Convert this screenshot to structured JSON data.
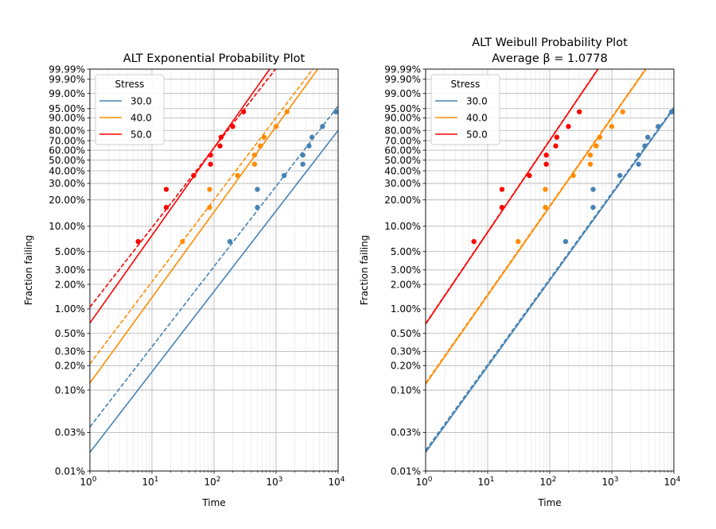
{
  "chart_data": [
    {
      "type": "scatter",
      "title": "ALT Exponential Probability Plot",
      "subtitle": "",
      "xlabel": "Time",
      "ylabel": "Fraction failing",
      "xscale": "log",
      "yscale": "weibull",
      "xlim": [
        1,
        10000
      ],
      "ylim": [
        0.0001,
        0.9999
      ],
      "xticks": [
        {
          "v": 1,
          "base": "10",
          "exp": "0"
        },
        {
          "v": 10,
          "base": "10",
          "exp": "1"
        },
        {
          "v": 100,
          "base": "10",
          "exp": "2"
        },
        {
          "v": 1000,
          "base": "10",
          "exp": "3"
        },
        {
          "v": 10000,
          "base": "10",
          "exp": "4"
        }
      ],
      "yticks": [
        {
          "v": 0.0001,
          "label": "0.01%"
        },
        {
          "v": 0.0003,
          "label": "0.03%"
        },
        {
          "v": 0.001,
          "label": "0.10%"
        },
        {
          "v": 0.002,
          "label": "0.20%"
        },
        {
          "v": 0.003,
          "label": "0.30%"
        },
        {
          "v": 0.005,
          "label": "0.50%"
        },
        {
          "v": 0.01,
          "label": "1.00%"
        },
        {
          "v": 0.02,
          "label": "2.00%"
        },
        {
          "v": 0.03,
          "label": "3.00%"
        },
        {
          "v": 0.05,
          "label": "5.00%"
        },
        {
          "v": 0.1,
          "label": "10.00%"
        },
        {
          "v": 0.2,
          "label": "20.00%"
        },
        {
          "v": 0.3,
          "label": "30.00%"
        },
        {
          "v": 0.4,
          "label": "40.00%"
        },
        {
          "v": 0.5,
          "label": "50.00%"
        },
        {
          "v": 0.6,
          "label": "60.00%"
        },
        {
          "v": 0.7,
          "label": "70.00%"
        },
        {
          "v": 0.8,
          "label": "80.00%"
        },
        {
          "v": 0.9,
          "label": "90.00%"
        },
        {
          "v": 0.95,
          "label": "95.00%"
        },
        {
          "v": 0.99,
          "label": "99.00%"
        },
        {
          "v": 0.999,
          "label": "99.90%"
        },
        {
          "v": 0.9999,
          "label": "99.99%"
        }
      ],
      "grid": true,
      "legend": {
        "title": "Stress",
        "position": "top-left",
        "entries": [
          "30.0",
          "40.0",
          "50.0"
        ]
      },
      "series": [
        {
          "name": "30.0",
          "color": "#4682b4",
          "points": [
            [
              180,
              0.066
            ],
            [
              500,
              0.165
            ],
            [
              500,
              0.26
            ],
            [
              1350,
              0.36
            ],
            [
              2700,
              0.46
            ],
            [
              2700,
              0.55
            ],
            [
              3400,
              0.645
            ],
            [
              3800,
              0.735
            ],
            [
              5600,
              0.835
            ],
            [
              9200,
              0.935
            ]
          ],
          "fit": {
            "from": [
              1,
              0.00017
            ],
            "to": [
              10000,
              0.8
            ]
          },
          "fit_dashed": {
            "from": [
              1,
              0.00035
            ],
            "to": [
              10000,
              0.96
            ]
          }
        },
        {
          "name": "40.0",
          "color": "#ff8c00",
          "points": [
            [
              31,
              0.066
            ],
            [
              85,
              0.165
            ],
            [
              85,
              0.26
            ],
            [
              240,
              0.36
            ],
            [
              450,
              0.46
            ],
            [
              450,
              0.55
            ],
            [
              560,
              0.645
            ],
            [
              640,
              0.735
            ],
            [
              1000,
              0.835
            ],
            [
              1500,
              0.935
            ]
          ],
          "fit": {
            "from": [
              1,
              0.00122
            ],
            "to": [
              4700,
              0.9999
            ]
          },
          "fit_dashed": {
            "from": [
              1,
              0.0021
            ],
            "to": [
              3900,
              0.9999
            ]
          }
        },
        {
          "name": "50.0",
          "color": "#ff0000",
          "points": [
            [
              6,
              0.066
            ],
            [
              17,
              0.165
            ],
            [
              17,
              0.26
            ],
            [
              47,
              0.36
            ],
            [
              88,
              0.46
            ],
            [
              88,
              0.55
            ],
            [
              125,
              0.645
            ],
            [
              130,
              0.735
            ],
            [
              200,
              0.835
            ],
            [
              300,
              0.935
            ]
          ],
          "fit": {
            "from": [
              1,
              0.0067
            ],
            "to": [
              790,
              0.9999
            ]
          },
          "fit_dashed": {
            "from": [
              1,
              0.0105
            ],
            "to": [
              980,
              0.9999
            ]
          }
        }
      ]
    },
    {
      "type": "scatter",
      "title": "ALT Weibull Probability Plot",
      "subtitle": "Average β = 1.0778",
      "xlabel": "Time",
      "ylabel": "Fraction failing",
      "xscale": "log",
      "yscale": "weibull",
      "xlim": [
        1,
        10000
      ],
      "ylim": [
        0.0001,
        0.9999
      ],
      "xticks": [
        {
          "v": 1,
          "base": "10",
          "exp": "0"
        },
        {
          "v": 10,
          "base": "10",
          "exp": "1"
        },
        {
          "v": 100,
          "base": "10",
          "exp": "2"
        },
        {
          "v": 1000,
          "base": "10",
          "exp": "3"
        },
        {
          "v": 10000,
          "base": "10",
          "exp": "4"
        }
      ],
      "yticks": [
        {
          "v": 0.0001,
          "label": "0.01%"
        },
        {
          "v": 0.0003,
          "label": "0.03%"
        },
        {
          "v": 0.001,
          "label": "0.10%"
        },
        {
          "v": 0.002,
          "label": "0.20%"
        },
        {
          "v": 0.003,
          "label": "0.30%"
        },
        {
          "v": 0.005,
          "label": "0.50%"
        },
        {
          "v": 0.01,
          "label": "1.00%"
        },
        {
          "v": 0.02,
          "label": "2.00%"
        },
        {
          "v": 0.03,
          "label": "3.00%"
        },
        {
          "v": 0.05,
          "label": "5.00%"
        },
        {
          "v": 0.1,
          "label": "10.00%"
        },
        {
          "v": 0.2,
          "label": "20.00%"
        },
        {
          "v": 0.3,
          "label": "30.00%"
        },
        {
          "v": 0.4,
          "label": "40.00%"
        },
        {
          "v": 0.5,
          "label": "50.00%"
        },
        {
          "v": 0.6,
          "label": "60.00%"
        },
        {
          "v": 0.7,
          "label": "70.00%"
        },
        {
          "v": 0.8,
          "label": "80.00%"
        },
        {
          "v": 0.9,
          "label": "90.00%"
        },
        {
          "v": 0.95,
          "label": "95.00%"
        },
        {
          "v": 0.99,
          "label": "99.00%"
        },
        {
          "v": 0.999,
          "label": "99.90%"
        },
        {
          "v": 0.9999,
          "label": "99.99%"
        }
      ],
      "grid": true,
      "legend": {
        "title": "Stress",
        "position": "top-left",
        "entries": [
          "30.0",
          "40.0",
          "50.0"
        ]
      },
      "series": [
        {
          "name": "30.0",
          "color": "#4682b4",
          "points": [
            [
              180,
              0.066
            ],
            [
              500,
              0.165
            ],
            [
              500,
              0.26
            ],
            [
              1350,
              0.36
            ],
            [
              2700,
              0.46
            ],
            [
              2700,
              0.55
            ],
            [
              3400,
              0.645
            ],
            [
              3800,
              0.735
            ],
            [
              5600,
              0.835
            ],
            [
              9200,
              0.935
            ]
          ],
          "fit": {
            "from": [
              1,
              0.00017
            ],
            "to": [
              10000,
              0.95
            ]
          },
          "fit_dashed": {
            "from": [
              1,
              0.00018
            ],
            "to": [
              10000,
              0.955
            ]
          }
        },
        {
          "name": "40.0",
          "color": "#ff8c00",
          "points": [
            [
              31,
              0.066
            ],
            [
              85,
              0.165
            ],
            [
              85,
              0.26
            ],
            [
              240,
              0.36
            ],
            [
              450,
              0.46
            ],
            [
              450,
              0.55
            ],
            [
              560,
              0.645
            ],
            [
              640,
              0.735
            ],
            [
              1000,
              0.835
            ],
            [
              1500,
              0.935
            ]
          ],
          "fit": {
            "from": [
              1,
              0.00118
            ],
            "to": [
              3550,
              0.9999
            ]
          },
          "fit_dashed": {
            "from": [
              1,
              0.00122
            ],
            "to": [
              3480,
              0.9999
            ]
          }
        },
        {
          "name": "50.0",
          "color": "#ff0000",
          "points": [
            [
              6,
              0.066
            ],
            [
              17,
              0.165
            ],
            [
              17,
              0.26
            ],
            [
              47,
              0.36
            ],
            [
              88,
              0.46
            ],
            [
              88,
              0.55
            ],
            [
              125,
              0.645
            ],
            [
              130,
              0.735
            ],
            [
              200,
              0.835
            ],
            [
              300,
              0.935
            ]
          ],
          "fit": {
            "from": [
              1,
              0.0065
            ],
            "to": [
              600,
              0.9999
            ]
          },
          "fit_dashed": {
            "from": [
              1,
              0.0066
            ],
            "to": [
              595,
              0.9999
            ]
          }
        }
      ]
    }
  ]
}
